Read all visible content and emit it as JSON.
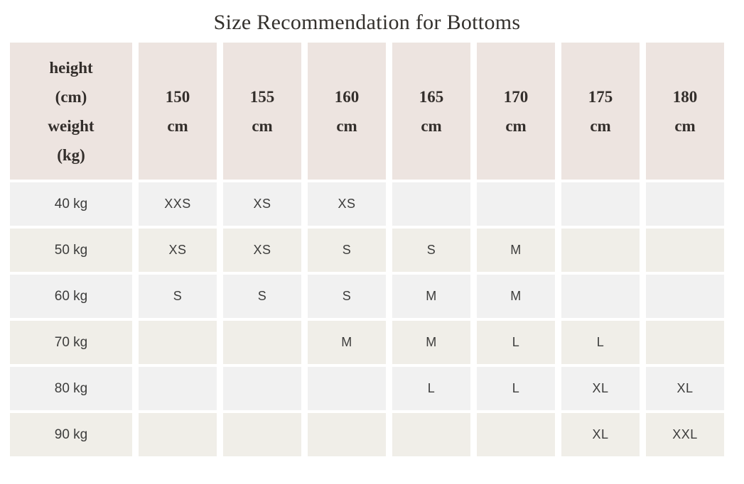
{
  "title": "Size Recommendation for Bottoms",
  "table": {
    "corner_lines": [
      "height",
      "(cm)",
      "weight",
      "(kg)"
    ],
    "columns": [
      {
        "value": "150",
        "unit": "cm"
      },
      {
        "value": "155",
        "unit": "cm"
      },
      {
        "value": "160",
        "unit": "cm"
      },
      {
        "value": "165",
        "unit": "cm"
      },
      {
        "value": "170",
        "unit": "cm"
      },
      {
        "value": "175",
        "unit": "cm"
      },
      {
        "value": "180",
        "unit": "cm"
      }
    ],
    "rows": [
      {
        "weight": "40 kg",
        "sizes": [
          "XXS",
          "XS",
          "XS",
          "",
          "",
          "",
          ""
        ]
      },
      {
        "weight": "50 kg",
        "sizes": [
          "XS",
          "XS",
          "S",
          "S",
          "M",
          "",
          ""
        ]
      },
      {
        "weight": "60 kg",
        "sizes": [
          "S",
          "S",
          "S",
          "M",
          "M",
          "",
          ""
        ]
      },
      {
        "weight": "70 kg",
        "sizes": [
          "",
          "",
          "M",
          "M",
          "L",
          "L",
          ""
        ]
      },
      {
        "weight": "80 kg",
        "sizes": [
          "",
          "",
          "",
          "L",
          "L",
          "XL",
          "XL"
        ]
      },
      {
        "weight": "90 kg",
        "sizes": [
          "",
          "",
          "",
          "",
          "",
          "XL",
          "XXL"
        ]
      }
    ],
    "colors": {
      "header_bg": "#ede4e0",
      "row_bg": "#f1f1f1",
      "row_alt_bg": "#f0eee8",
      "header_text": "#332e2b",
      "cell_text": "#3c3c3b",
      "title_text": "#33302c",
      "page_bg": "#ffffff"
    }
  }
}
